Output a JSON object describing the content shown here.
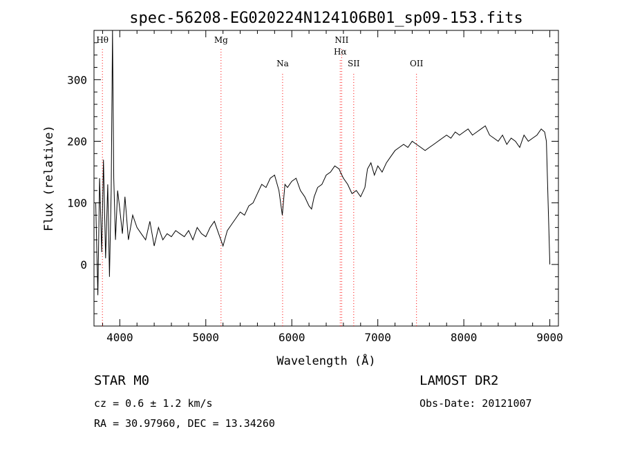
{
  "chart_data": {
    "type": "line",
    "title": "spec-56208-EG020224N124106B01_sp09-153.fits",
    "xlabel": "Wavelength (Å)",
    "ylabel": "Flux (relative)",
    "xlim": [
      3700,
      9100
    ],
    "ylim": [
      -100,
      380
    ],
    "xticks": [
      4000,
      5000,
      6000,
      7000,
      8000,
      9000
    ],
    "yticks": [
      0,
      100,
      200,
      300
    ],
    "grid": false,
    "line_color": "#000000",
    "marker_color": "#ff0000",
    "series": [
      {
        "x": [
          3720,
          3745,
          3765,
          3790,
          3810,
          3835,
          3860,
          3880,
          3900,
          3915,
          3930,
          3950,
          3975,
          4000,
          4030,
          4060,
          4100,
          4150,
          4200,
          4250,
          4300,
          4350,
          4400,
          4450,
          4500,
          4550,
          4600,
          4650,
          4700,
          4750,
          4800,
          4850,
          4900,
          4950,
          5000,
          5050,
          5100,
          5150,
          5200,
          5250,
          5300,
          5350,
          5400,
          5450,
          5500,
          5550,
          5600,
          5650,
          5700,
          5750,
          5800,
          5850,
          5890,
          5920,
          5950,
          6000,
          6050,
          6100,
          6150,
          6200,
          6230,
          6260,
          6300,
          6350,
          6400,
          6450,
          6500,
          6550,
          6565,
          6600,
          6650,
          6700,
          6750,
          6800,
          6850,
          6880,
          6920,
          6960,
          7000,
          7050,
          7100,
          7150,
          7200,
          7250,
          7300,
          7350,
          7400,
          7450,
          7500,
          7550,
          7600,
          7650,
          7700,
          7750,
          7800,
          7850,
          7900,
          7950,
          8000,
          8050,
          8100,
          8150,
          8200,
          8250,
          8300,
          8350,
          8400,
          8450,
          8500,
          8550,
          8600,
          8650,
          8700,
          8750,
          8800,
          8850,
          8900,
          8940,
          8960,
          8980,
          9000
        ],
        "y": [
          100,
          -50,
          140,
          20,
          170,
          10,
          130,
          -20,
          120,
          380,
          140,
          40,
          120,
          90,
          50,
          110,
          40,
          80,
          60,
          50,
          40,
          70,
          30,
          60,
          40,
          50,
          45,
          55,
          50,
          45,
          55,
          40,
          60,
          50,
          45,
          60,
          70,
          50,
          30,
          55,
          65,
          75,
          85,
          80,
          95,
          100,
          115,
          130,
          125,
          140,
          145,
          120,
          80,
          130,
          125,
          135,
          140,
          120,
          110,
          95,
          90,
          110,
          125,
          130,
          145,
          150,
          160,
          155,
          150,
          140,
          130,
          115,
          120,
          110,
          125,
          155,
          165,
          145,
          160,
          150,
          165,
          175,
          185,
          190,
          195,
          190,
          200,
          195,
          190,
          185,
          190,
          195,
          200,
          205,
          210,
          205,
          215,
          210,
          215,
          220,
          210,
          215,
          220,
          225,
          210,
          205,
          200,
          210,
          195,
          205,
          200,
          190,
          210,
          200,
          205,
          210,
          220,
          215,
          200,
          100,
          0
        ]
      }
    ],
    "lines": [
      {
        "label": "Hθ",
        "x": 3798,
        "row": 0
      },
      {
        "label": "Mg",
        "x": 5177,
        "row": 0
      },
      {
        "label": "Na",
        "x": 5893,
        "row": 1
      },
      {
        "label": "NII",
        "x": 6580,
        "row": 0
      },
      {
        "label": "Hα",
        "x": 6563,
        "row": 0.5
      },
      {
        "label": "SII",
        "x": 6720,
        "row": 1
      },
      {
        "label": "OII",
        "x": 7450,
        "row": 1
      }
    ]
  },
  "info": {
    "class": "STAR    M0",
    "survey": "LAMOST DR2",
    "cz": "cz = 0.6 ± 1.2 km/s",
    "obs_date": "Obs-Date: 20121007",
    "coords": "RA =  30.97960, DEC =  13.34260"
  }
}
